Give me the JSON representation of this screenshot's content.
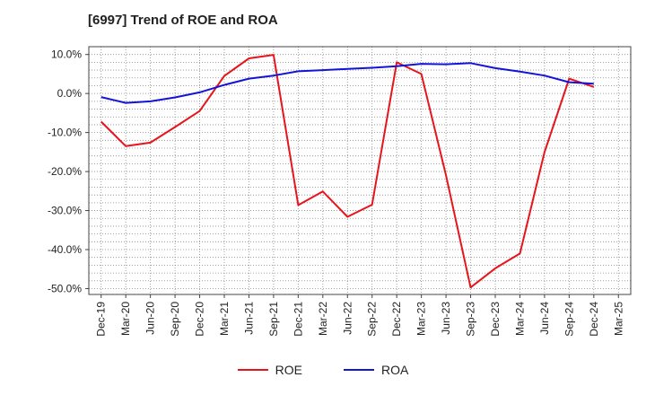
{
  "chart_data": {
    "type": "line",
    "title": "[6997]  Trend of ROE and ROA",
    "xlabel": "",
    "ylabel": "",
    "categories": [
      "Dec-19",
      "Mar-20",
      "Jun-20",
      "Sep-20",
      "Dec-20",
      "Mar-21",
      "Jun-21",
      "Sep-21",
      "Dec-21",
      "Mar-22",
      "Jun-22",
      "Sep-22",
      "Dec-22",
      "Mar-23",
      "Jun-23",
      "Sep-23",
      "Dec-23",
      "Mar-24",
      "Jun-24",
      "Sep-24",
      "Dec-24",
      "Mar-25"
    ],
    "y_tick_labels": [
      "10.0%",
      "0.0%",
      "-10.0%",
      "-20.0%",
      "-30.0%",
      "-40.0%",
      "-50.0%"
    ],
    "y_ticks": [
      10,
      0,
      -10,
      -20,
      -30,
      -40,
      -50
    ],
    "ylim": [
      -51.5,
      12
    ],
    "grid": true,
    "legend_position": "bottom-center",
    "series": [
      {
        "name": "ROE",
        "color": "#e8141c",
        "values": [
          -7.2,
          -13.5,
          -12.6,
          -8.6,
          -4.5,
          4.5,
          9.0,
          9.9,
          -28.6,
          -25.1,
          -31.6,
          -28.5,
          8.0,
          5.0,
          -21.0,
          -49.7,
          -44.8,
          -41.0,
          -15.0,
          3.8,
          1.7,
          null
        ]
      },
      {
        "name": "ROA",
        "color": "#1414d8",
        "values": [
          -0.9,
          -2.4,
          -2.0,
          -1.0,
          0.3,
          2.2,
          3.8,
          4.6,
          5.7,
          6.0,
          6.3,
          6.6,
          7.0,
          7.6,
          7.5,
          7.8,
          6.5,
          5.6,
          4.6,
          2.9,
          2.5,
          null
        ]
      }
    ]
  }
}
